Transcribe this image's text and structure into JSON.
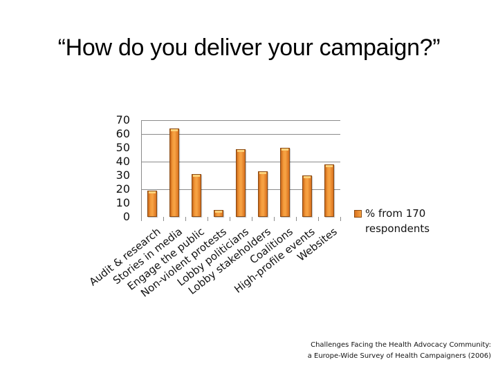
{
  "slide": {
    "title": "“How do you deliver your campaign?”",
    "source_line1": "Challenges Facing the Health Advocacy Community:",
    "source_line2": "a Europe-Wide Survey of Health Campaigners (2006)"
  },
  "legend": {
    "label": "% from 170 respondents",
    "swatch_color": "#F39A3A"
  },
  "colors": {
    "bar": "#F39A3A",
    "bar_border": "#8A4A12",
    "gridline": "#8A8A8A"
  },
  "chart_data": {
    "type": "bar",
    "title": "“How do you deliver your campaign?”",
    "xlabel": "",
    "ylabel": "",
    "ylim": [
      0,
      70
    ],
    "yticks": [
      0,
      10,
      20,
      30,
      40,
      50,
      60,
      70
    ],
    "grid": true,
    "legend_position": "right",
    "categories": [
      "Audit & research",
      "Stories in media",
      "Engage the public",
      "Non-violent protests",
      "Lobby politicians",
      "Lobby stakeholders",
      "Coalitions",
      "High-profile events",
      "Websites"
    ],
    "series": [
      {
        "name": "% from 170 respondents",
        "values": [
          19,
          64,
          31,
          5,
          49,
          33,
          50,
          30,
          38
        ]
      }
    ]
  }
}
